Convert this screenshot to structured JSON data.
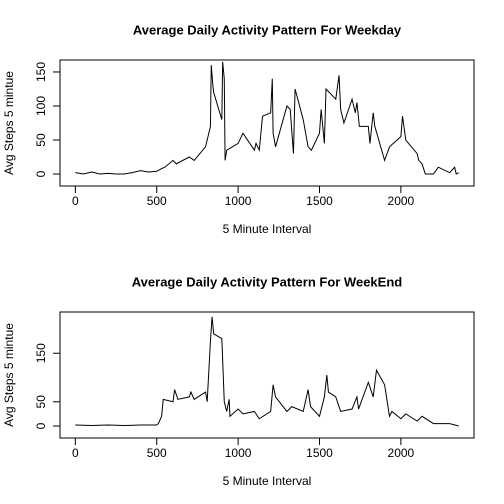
{
  "chart_data": [
    {
      "type": "line",
      "title": "Average Daily Activity Pattern For Weekday",
      "xlabel": "5 Minute Interval",
      "ylabel": "Avg Steps 5 mintue",
      "color": "#000000",
      "xlim": [
        -94.2,
        2449.2
      ],
      "ylim": [
        -17.6,
        167.6
      ],
      "xticks": [
        0,
        500,
        1000,
        1500,
        2000
      ],
      "yticks": [
        0,
        50,
        100,
        150
      ],
      "x": [
        0,
        50,
        100,
        150,
        200,
        250,
        300,
        350,
        400,
        450,
        500,
        530,
        550,
        600,
        620,
        700,
        730,
        800,
        830,
        835,
        845,
        850,
        900,
        905,
        915,
        920,
        930,
        1000,
        1030,
        1100,
        1110,
        1130,
        1150,
        1200,
        1210,
        1215,
        1230,
        1300,
        1320,
        1340,
        1350,
        1400,
        1430,
        1450,
        1500,
        1510,
        1530,
        1540,
        1600,
        1620,
        1630,
        1650,
        1700,
        1720,
        1730,
        1745,
        1800,
        1810,
        1830,
        1840,
        1900,
        1930,
        2000,
        2010,
        2030,
        2100,
        2110,
        2130,
        2150,
        2200,
        2230,
        2300,
        2330,
        2340,
        2355
      ],
      "values": [
        2,
        0,
        3,
        0,
        1,
        0,
        0,
        2,
        5,
        3,
        4,
        8,
        10,
        20,
        15,
        25,
        20,
        40,
        70,
        160,
        130,
        120,
        80,
        165,
        140,
        20,
        35,
        45,
        60,
        35,
        45,
        35,
        85,
        90,
        140,
        60,
        40,
        100,
        95,
        30,
        125,
        80,
        40,
        35,
        60,
        95,
        45,
        125,
        110,
        145,
        95,
        75,
        110,
        90,
        105,
        70,
        70,
        45,
        90,
        70,
        20,
        40,
        55,
        85,
        50,
        30,
        20,
        15,
        0,
        0,
        10,
        2,
        10,
        0,
        2
      ]
    },
    {
      "type": "line",
      "title": "Average Daily Activity Pattern For WeekEnd",
      "xlabel": "5 Minute Interval",
      "ylabel": "Avg Steps 5 mintue",
      "color": "#000000",
      "xlim": [
        -94.2,
        2449.2
      ],
      "ylim": [
        -24.7,
        235
      ],
      "xticks": [
        0,
        500,
        1000,
        1500,
        2000
      ],
      "yticks": [
        0,
        50,
        150
      ],
      "x": [
        0,
        100,
        200,
        300,
        400,
        500,
        510,
        530,
        540,
        600,
        610,
        630,
        700,
        710,
        730,
        800,
        810,
        830,
        840,
        850,
        900,
        915,
        930,
        945,
        950,
        1000,
        1030,
        1100,
        1130,
        1200,
        1215,
        1230,
        1300,
        1330,
        1400,
        1430,
        1445,
        1500,
        1530,
        1545,
        1555,
        1600,
        1630,
        1700,
        1730,
        1740,
        1800,
        1830,
        1850,
        1900,
        1930,
        1945,
        2000,
        2030,
        2100,
        2130,
        2200,
        2300,
        2355
      ],
      "values": [
        2,
        1,
        2,
        1,
        2,
        2,
        5,
        20,
        55,
        50,
        75,
        55,
        60,
        70,
        55,
        70,
        50,
        175,
        225,
        190,
        180,
        50,
        30,
        55,
        20,
        35,
        25,
        30,
        15,
        30,
        85,
        60,
        30,
        40,
        30,
        75,
        40,
        20,
        60,
        105,
        70,
        60,
        30,
        35,
        60,
        35,
        90,
        60,
        115,
        85,
        20,
        30,
        15,
        25,
        10,
        20,
        5,
        5,
        0
      ]
    }
  ]
}
